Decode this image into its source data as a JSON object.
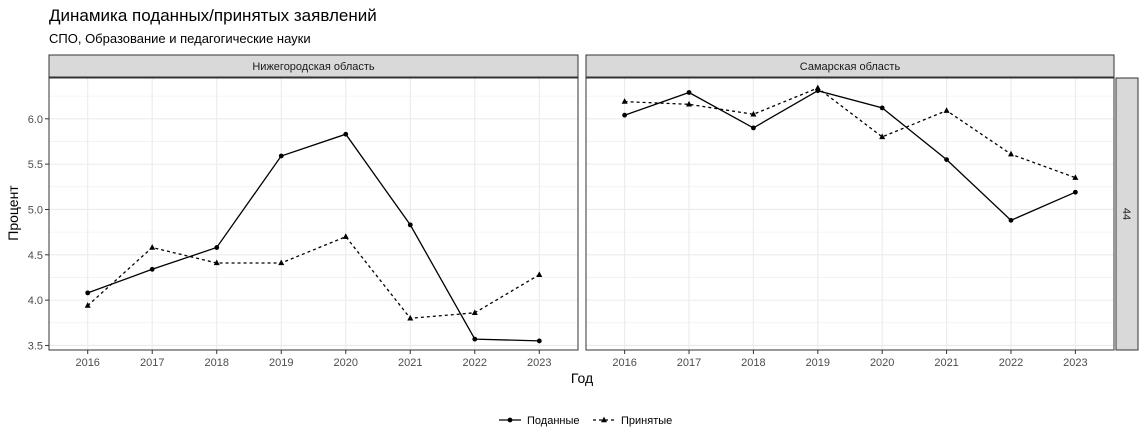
{
  "chart_data": {
    "type": "line",
    "title": "Динамика поданных/принятых заявлений",
    "subtitle": "СПО, Образование и педагогические науки",
    "xlabel": "Год",
    "ylabel": "Процент",
    "x": [
      2016,
      2017,
      2018,
      2019,
      2020,
      2021,
      2022,
      2023
    ],
    "ylim": [
      3.45,
      6.45
    ],
    "yticks": [
      3.5,
      4.0,
      4.5,
      5.0,
      5.5,
      6.0
    ],
    "ytick_labels": [
      "3.5",
      "4.0",
      "4.5",
      "5.0",
      "5.5",
      "6.0"
    ],
    "row_strip": "44",
    "grid": true,
    "legend_position": "bottom",
    "series_names": [
      "Поданные",
      "Принятые"
    ],
    "panels": [
      {
        "name": "Нижегородская область",
        "series": [
          {
            "name": "Поданные",
            "values": [
              4.08,
              4.34,
              4.58,
              5.59,
              5.83,
              4.83,
              3.57,
              3.55
            ]
          },
          {
            "name": "Принятые",
            "values": [
              3.94,
              4.58,
              4.41,
              4.41,
              4.7,
              3.8,
              3.86,
              4.28
            ]
          }
        ]
      },
      {
        "name": "Самарская область",
        "series": [
          {
            "name": "Поданные",
            "values": [
              6.04,
              6.29,
              5.9,
              6.31,
              6.12,
              5.55,
              4.88,
              5.19
            ]
          },
          {
            "name": "Принятые",
            "values": [
              6.19,
              6.16,
              6.05,
              6.34,
              5.8,
              6.09,
              5.61,
              5.35
            ]
          }
        ]
      }
    ]
  },
  "colors": {
    "line": "#000000",
    "grid": "#ebebeb",
    "panel_border": "#333333",
    "strip_fill": "#d9d9d9"
  }
}
